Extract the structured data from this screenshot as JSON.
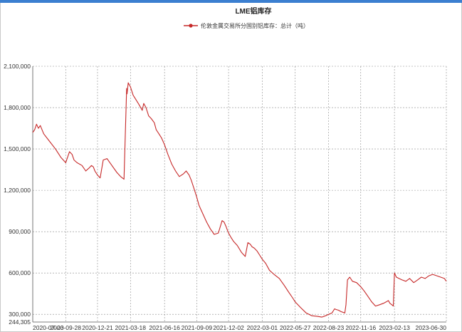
{
  "chart_data": {
    "type": "line",
    "title": "LME铝库存",
    "legend": {
      "position": "top",
      "entries": [
        "伦敦金属交易所分国别铝库存：总计（吨）"
      ]
    },
    "colors": {
      "series": "#c62828",
      "grid": "#8c8c8c",
      "accent": "#3b7fd0"
    },
    "grid": true,
    "x_ticks": [
      "2020-07-03",
      "2020-09-28",
      "2020-12-21",
      "2021-03-18",
      "2021-06-16",
      "2021-09-09",
      "2021-12-02",
      "2022-03-01",
      "2022-05-27",
      "2022-08-23",
      "2022-11-16",
      "2023-02-13",
      "2023-06-30"
    ],
    "y_ticks": [
      "244,305",
      "300,000",
      "600,000",
      "900,000",
      "1,200,000",
      "1,500,000",
      "1,800,000",
      "2,100,000"
    ],
    "y_tick_values": [
      244305,
      300000,
      600000,
      900000,
      1200000,
      1500000,
      1800000,
      2100000
    ],
    "ylim": [
      244305,
      2100000
    ],
    "series": [
      {
        "name": "伦敦金属交易所分国别铝库存：总计（吨）",
        "x": [
          "2020-07-03",
          "2020-07-08",
          "2020-07-13",
          "2020-07-18",
          "2020-07-23",
          "2020-08-01",
          "2020-08-15",
          "2020-09-01",
          "2020-09-15",
          "2020-09-28",
          "2020-10-08",
          "2020-10-15",
          "2020-10-20",
          "2020-10-28",
          "2020-11-10",
          "2020-11-20",
          "2020-11-28",
          "2020-12-05",
          "2020-12-10",
          "2020-12-14",
          "2020-12-21",
          "2020-12-28",
          "2021-01-05",
          "2021-01-15",
          "2021-01-28",
          "2021-02-10",
          "2021-02-20",
          "2021-03-01",
          "2021-03-08",
          "2021-03-09",
          "2021-03-12",
          "2021-03-18",
          "2021-03-25",
          "2021-04-01",
          "2021-04-10",
          "2021-04-18",
          "2021-04-22",
          "2021-04-28",
          "2021-05-05",
          "2021-05-12",
          "2021-05-20",
          "2021-05-25",
          "2021-06-01",
          "2021-06-08",
          "2021-06-16",
          "2021-06-25",
          "2021-07-05",
          "2021-07-15",
          "2021-07-25",
          "2021-08-05",
          "2021-08-12",
          "2021-08-20",
          "2021-08-26",
          "2021-09-02",
          "2021-09-09",
          "2021-09-15",
          "2021-09-25",
          "2021-10-05",
          "2021-10-15",
          "2021-10-25",
          "2021-11-05",
          "2021-11-15",
          "2021-11-20",
          "2021-11-25",
          "2021-11-29",
          "2021-12-02",
          "2021-12-08",
          "2021-12-15",
          "2021-12-25",
          "2022-01-05",
          "2022-01-15",
          "2022-01-22",
          "2022-01-28",
          "2022-02-02",
          "2022-02-08",
          "2022-02-15",
          "2022-02-22",
          "2022-03-01",
          "2022-03-10",
          "2022-03-20",
          "2022-04-01",
          "2022-04-15",
          "2022-04-28",
          "2022-05-10",
          "2022-05-20",
          "2022-05-27",
          "2022-06-10",
          "2022-06-25",
          "2022-07-10",
          "2022-07-25",
          "2022-08-05",
          "2022-08-15",
          "2022-08-23",
          "2022-09-01",
          "2022-09-08",
          "2022-09-12",
          "2022-09-18",
          "2022-09-25",
          "2022-10-05",
          "2022-10-08",
          "2022-10-12",
          "2022-10-18",
          "2022-10-25",
          "2022-11-05",
          "2022-11-16",
          "2022-11-25",
          "2022-12-05",
          "2022-12-15",
          "2022-12-25",
          "2023-01-05",
          "2023-01-15",
          "2023-01-22",
          "2023-01-28",
          "2023-02-01",
          "2023-02-06",
          "2023-02-10",
          "2023-02-13",
          "2023-02-18",
          "2023-02-25",
          "2023-03-05",
          "2023-03-15",
          "2023-03-25",
          "2023-04-05",
          "2023-04-15",
          "2023-04-25",
          "2023-05-05",
          "2023-05-15",
          "2023-05-25",
          "2023-06-05",
          "2023-06-15",
          "2023-06-25",
          "2023-06-30"
        ],
        "y": [
          1620000,
          1640000,
          1680000,
          1650000,
          1670000,
          1610000,
          1560000,
          1500000,
          1440000,
          1400000,
          1480000,
          1460000,
          1420000,
          1400000,
          1380000,
          1340000,
          1360000,
          1380000,
          1370000,
          1340000,
          1310000,
          1290000,
          1420000,
          1430000,
          1380000,
          1330000,
          1300000,
          1280000,
          1940000,
          1900000,
          1980000,
          1950000,
          1890000,
          1860000,
          1820000,
          1780000,
          1830000,
          1800000,
          1740000,
          1720000,
          1690000,
          1640000,
          1610000,
          1580000,
          1530000,
          1460000,
          1390000,
          1340000,
          1300000,
          1320000,
          1340000,
          1310000,
          1270000,
          1210000,
          1150000,
          1090000,
          1030000,
          970000,
          920000,
          880000,
          890000,
          980000,
          970000,
          940000,
          910000,
          890000,
          860000,
          830000,
          800000,
          750000,
          720000,
          820000,
          810000,
          790000,
          780000,
          760000,
          730000,
          700000,
          670000,
          620000,
          590000,
          560000,
          510000,
          460000,
          420000,
          390000,
          350000,
          310000,
          290000,
          285000,
          280000,
          290000,
          300000,
          310000,
          340000,
          335000,
          330000,
          320000,
          310000,
          370000,
          550000,
          570000,
          540000,
          530000,
          500000,
          470000,
          430000,
          390000,
          360000,
          370000,
          380000,
          390000,
          400000,
          380000,
          370000,
          360000,
          600000,
          570000,
          560000,
          550000,
          540000,
          560000,
          530000,
          550000,
          570000,
          560000,
          580000,
          590000,
          580000,
          570000,
          560000,
          540000
        ]
      }
    ]
  }
}
